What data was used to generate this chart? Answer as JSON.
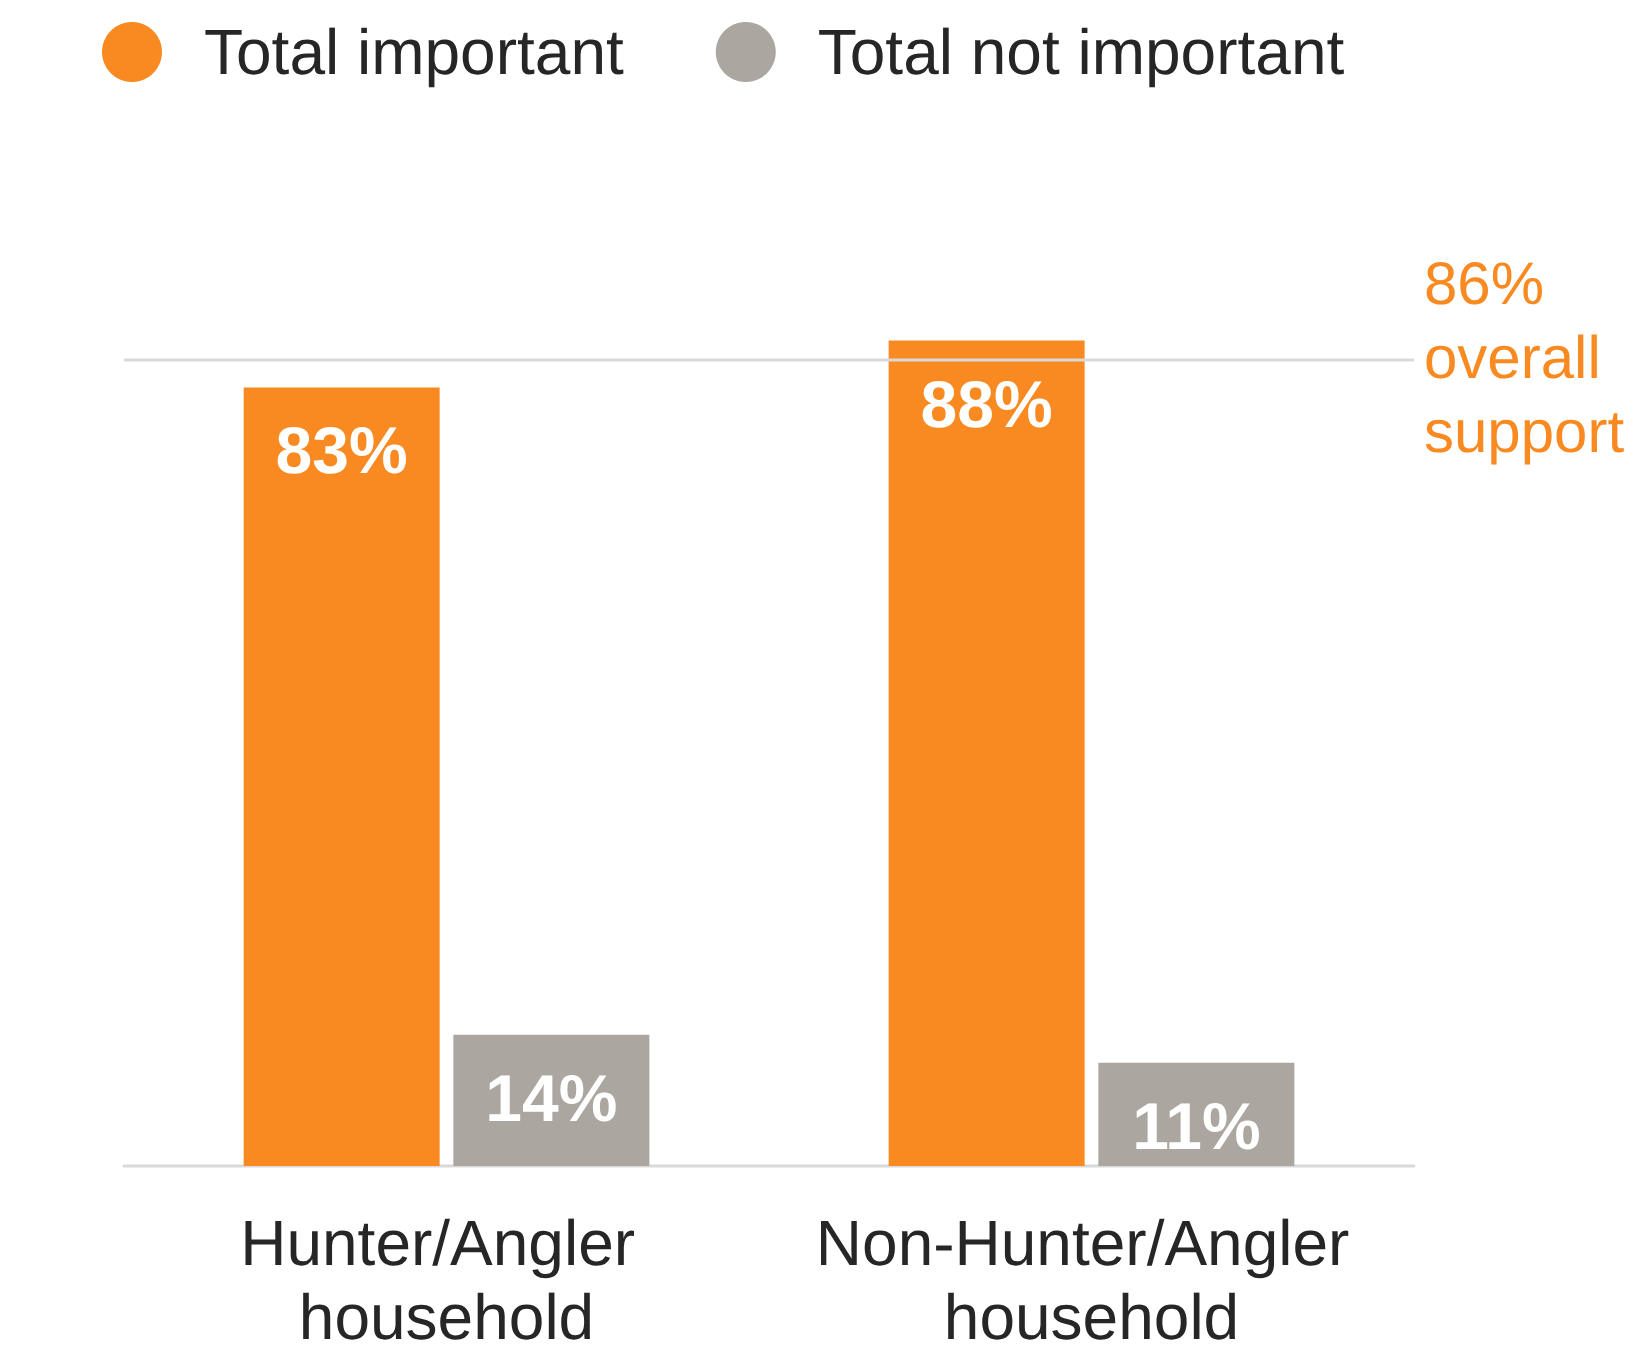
{
  "chart_data": {
    "type": "bar",
    "categories": [
      "Hunter/Angler household",
      "Non-Hunter/Angler household"
    ],
    "series": [
      {
        "name": "Total important",
        "color": "#f98a21",
        "values": [
          83,
          88
        ],
        "value_labels": [
          "83%",
          "88%"
        ]
      },
      {
        "name": "Total not important",
        "color": "#aba69f",
        "values": [
          14,
          11
        ],
        "value_labels": [
          "14%",
          "11%"
        ]
      }
    ],
    "ref_lines": [
      {
        "axis": "y",
        "value": 86,
        "label": "86% overall support",
        "color": "#d9d9d9"
      }
    ],
    "legend": "top left",
    "tick_labels": "x"
  }
}
